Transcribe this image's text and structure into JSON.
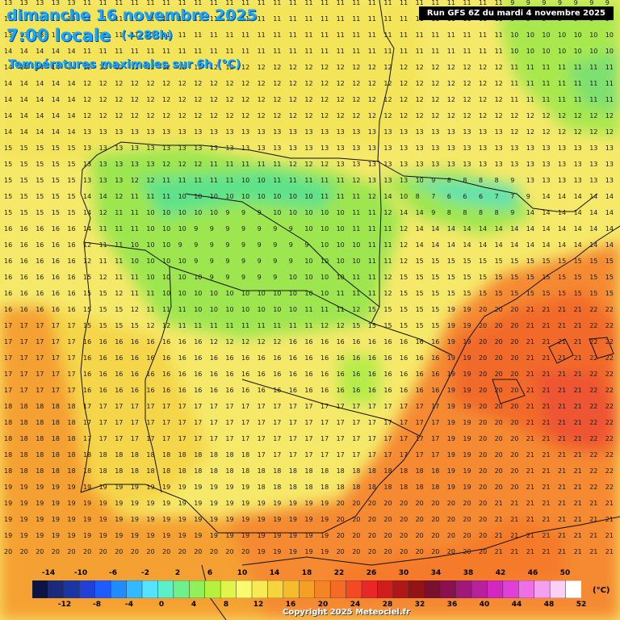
{
  "header": {
    "date": "dimanche 16 novembre 2025",
    "time": "7:00 locale",
    "offset": "(+288h)",
    "subtitle": "Températures maximales sur 6h (°C)",
    "run": "Run GFS 6Z du mardi 4 novembre 2025"
  },
  "legend": {
    "unit": "(°C)",
    "top_labels": [
      "-14",
      "-10",
      "-6",
      "-2",
      "2",
      "6",
      "10",
      "14",
      "18",
      "22",
      "26",
      "30",
      "34",
      "38",
      "42",
      "46",
      "50"
    ],
    "bottom_labels": [
      "-12",
      "-8",
      "-4",
      "0",
      "4",
      "8",
      "12",
      "16",
      "20",
      "24",
      "28",
      "32",
      "36",
      "40",
      "44",
      "48",
      "52"
    ],
    "colors": [
      "#0a1445",
      "#1b2a7a",
      "#1c35a5",
      "#2040d8",
      "#1e5cff",
      "#1f8cff",
      "#33b9ff",
      "#56e3ff",
      "#5cf0c8",
      "#6ef08a",
      "#8ff05a",
      "#b8f040",
      "#e0f54a",
      "#fafa6e",
      "#f7ea55",
      "#f5d53d",
      "#f5bd2e",
      "#f5a024",
      "#f58424",
      "#f56a24",
      "#f24a24",
      "#e82828",
      "#d01e1e",
      "#b01818",
      "#921414",
      "#7a1030",
      "#8a1050",
      "#a01878",
      "#b8209c",
      "#d028c0",
      "#e040d8",
      "#ee70e6",
      "#f5a0ee",
      "#fad0f5",
      "#ffffff"
    ]
  },
  "footer": {
    "copyright": "Copyright 2025 Meteociel.fr"
  }
}
